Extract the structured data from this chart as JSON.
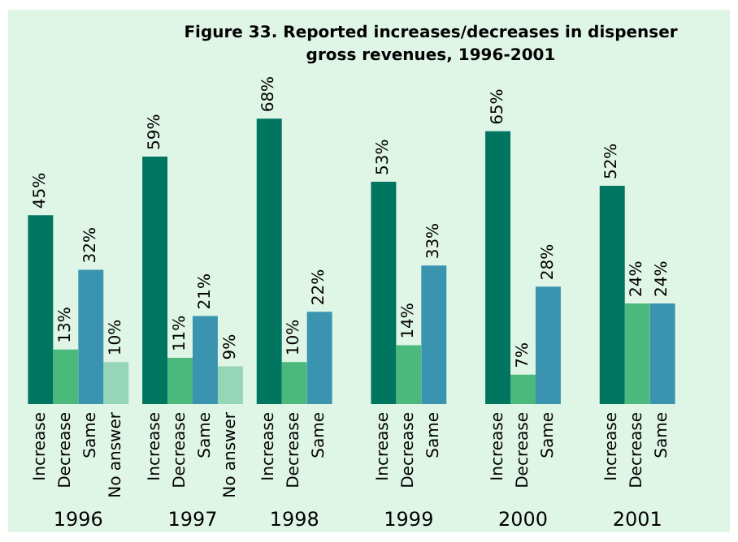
{
  "chart_data": {
    "type": "bar",
    "title": "Figure 33. Reported increases/decreases in dispenser gross revenues, 1996-2001",
    "categories": [
      "1996",
      "1997",
      "1998",
      "1999",
      "2000",
      "2001"
    ],
    "series": [
      {
        "name": "Increase",
        "color": "#007560",
        "values": [
          45,
          59,
          68,
          53,
          65,
          52
        ],
        "value_labels": [
          "45%",
          "59%",
          "68%",
          "53%",
          "65%",
          "52%"
        ]
      },
      {
        "name": "Decrease",
        "color": "#4bb87c",
        "values": [
          13,
          11,
          10,
          14,
          7,
          24
        ],
        "value_labels": [
          "13%",
          "11%",
          "10%",
          "14%",
          "7%",
          "24%"
        ]
      },
      {
        "name": "Same",
        "color": "#3a94b0",
        "values": [
          32,
          21,
          22,
          33,
          28,
          24
        ],
        "value_labels": [
          "32%",
          "21%",
          "22%",
          "33%",
          "28%",
          "24%"
        ]
      },
      {
        "name": "No answer",
        "color": "#96d6b8",
        "values": [
          10,
          9,
          null,
          null,
          null,
          null
        ],
        "value_labels": [
          "10%",
          "9%",
          null,
          null,
          null,
          null
        ]
      }
    ],
    "legend": false
  }
}
